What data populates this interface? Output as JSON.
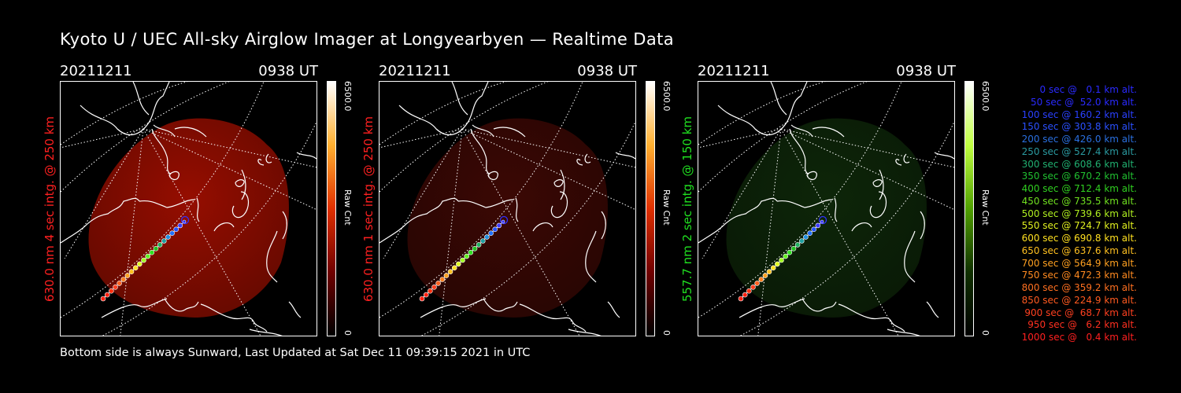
{
  "title": "Kyoto U / UEC All-sky Airglow Imager at Longyearbyen — Realtime Data",
  "footer": "Bottom side is always Sunward, Last Updated at Sat Dec 11 09:39:15 2021 in UTC",
  "panels": [
    {
      "date": "20211211",
      "time": "0938 UT",
      "ylabel": "630.0 nm 4 sec intg. @ 250 km",
      "label_color": "#ff2020",
      "glow_color": "#b01000",
      "glow_opacity": 0.85,
      "colorbar_max": "6500.0",
      "colorbar_unit": "Raw Cnt",
      "colorbar_min": "0",
      "colorbar_colors": [
        "#ffffff",
        "#ffb030",
        "#e03000",
        "#700000",
        "#000000"
      ]
    },
    {
      "date": "20211211",
      "time": "0938 UT",
      "ylabel": "630.0 nm 1 sec intg. @ 250 km",
      "label_color": "#ff2020",
      "glow_color": "#4a0a05",
      "glow_opacity": 0.8,
      "colorbar_max": "6500.0",
      "colorbar_unit": "Raw Cnt",
      "colorbar_min": "0",
      "colorbar_colors": [
        "#ffffff",
        "#ffb030",
        "#e03000",
        "#700000",
        "#000000"
      ]
    },
    {
      "date": "20211211",
      "time": "0938 UT",
      "ylabel": "557.7 nm 2 sec intg. @ 150 km",
      "label_color": "#20e020",
      "glow_color": "#0f2a0a",
      "glow_opacity": 0.9,
      "colorbar_max": "6500.0",
      "colorbar_unit": "Raw Cnt",
      "colorbar_min": "0",
      "colorbar_colors": [
        "#ffffff",
        "#c0ff40",
        "#50a000",
        "#103000",
        "#000000"
      ]
    }
  ],
  "trajectory_colors": [
    "#3030ff",
    "#3a3aff",
    "#2050ff",
    "#2070ff",
    "#2090e0",
    "#20a0a0",
    "#20b060",
    "#20c020",
    "#30e020",
    "#60f020",
    "#a0ff20",
    "#e0ff20",
    "#ffe020",
    "#ffc020",
    "#ffa020",
    "#ff8020",
    "#ff6020",
    "#ff4020",
    "#ff3010",
    "#ff2010",
    "#ff2010"
  ],
  "legend": [
    {
      "text": "0 sec @   0.1 km alt.",
      "color": "#2a2aff"
    },
    {
      "text": "50 sec @  52.0 km alt.",
      "color": "#2a2aff"
    },
    {
      "text": "100 sec @ 160.2 km alt.",
      "color": "#2a40ff"
    },
    {
      "text": "150 sec @ 303.8 km alt.",
      "color": "#2a50ff"
    },
    {
      "text": "200 sec @ 426.0 km alt.",
      "color": "#2a70e0"
    },
    {
      "text": "250 sec @ 527.4 km alt.",
      "color": "#2a9aa0"
    },
    {
      "text": "300 sec @ 608.6 km alt.",
      "color": "#20b070"
    },
    {
      "text": "350 sec @ 670.2 km alt.",
      "color": "#20c030"
    },
    {
      "text": "400 sec @ 712.4 km alt.",
      "color": "#30d020"
    },
    {
      "text": "450 sec @ 735.5 km alt.",
      "color": "#70e020"
    },
    {
      "text": "500 sec @ 739.6 km alt.",
      "color": "#b0f020"
    },
    {
      "text": "550 sec @ 724.7 km alt.",
      "color": "#e0f020"
    },
    {
      "text": "600 sec @ 690.8 km alt.",
      "color": "#ffe020"
    },
    {
      "text": "650 sec @ 637.6 km alt.",
      "color": "#ffc020"
    },
    {
      "text": "700 sec @ 564.9 km alt.",
      "color": "#ffa020"
    },
    {
      "text": "750 sec @ 472.3 km alt.",
      "color": "#ff8a20"
    },
    {
      "text": "800 sec @ 359.2 km alt.",
      "color": "#ff7020"
    },
    {
      "text": "850 sec @ 224.9 km alt.",
      "color": "#ff5a20"
    },
    {
      "text": "900 sec @  68.7 km alt.",
      "color": "#ff4020"
    },
    {
      "text": "950 sec @   6.2 km alt.",
      "color": "#ff3020"
    },
    {
      "text": "1000 sec @   0.4 km alt.",
      "color": "#ff2020"
    }
  ]
}
